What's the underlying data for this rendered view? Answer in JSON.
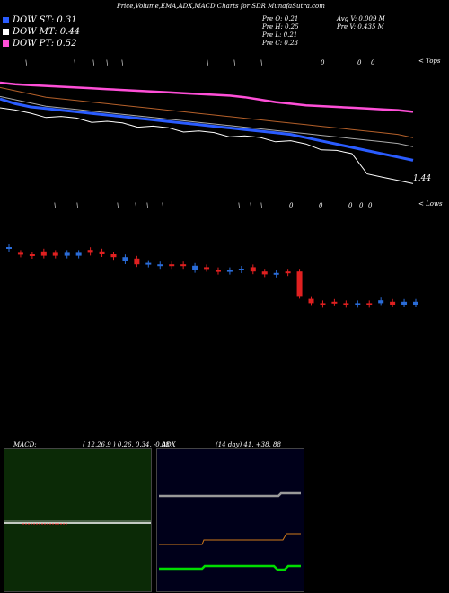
{
  "header": {
    "title": "Price,Volume,EMA,ADX,MACD Charts for SDR MunafaSutra.com"
  },
  "legend": [
    {
      "label": "DOW ST: 0.31",
      "color": "#2a5cff"
    },
    {
      "label": "DOW MT: 0.44",
      "color": "#ffffff"
    },
    {
      "label": "DOW PT: 0.52",
      "color": "#ff4fd8"
    }
  ],
  "stats": {
    "prev_open": "Pre   O: 0.21",
    "prev_high": "Pre   H: 0.25",
    "prev_low": "Pre   L: 0.21",
    "prev_close": "Pre   C: 0.23",
    "avg_volume": "Avg V: 0.009 M",
    "prev_volume": "Pre   V: 0.435 M"
  },
  "labels": {
    "top_right": "< Tops",
    "lows_right": "< Lows",
    "price_tag": "1.44"
  },
  "markers_top": [
    "\\",
    "\\",
    "\\",
    "\\",
    "\\",
    "\\",
    "\\",
    "\\",
    "0",
    "0",
    "0"
  ],
  "markers_low": [
    "\\",
    "\\",
    "\\",
    "\\",
    "\\",
    "\\",
    "\\",
    "\\",
    "\\",
    "0",
    "0",
    "0",
    "0",
    "0"
  ],
  "colors": {
    "bg": "#000000",
    "ema_pink": "#ff4fd8",
    "ema_orange": "#b4602a",
    "ema_gray": "#aaaaaa",
    "ema_blue": "#2a5cff",
    "price_white": "#ffffff",
    "candle_up": "#2a6cd8",
    "candle_down": "#e02020",
    "macd_bg": "#0b2a06",
    "adx_bg": "#00001a",
    "adx_gray": "#999999",
    "adx_orange": "#d07a1a",
    "adx_green": "#00dd00"
  },
  "macd": {
    "title": "MACD:",
    "params": "( 12,26,9 ) 0.26, 0.34, -0.08"
  },
  "adx": {
    "title": "ADX",
    "params": "(14 day) 41, +38, 88"
  },
  "chart_data": {
    "type": "line",
    "title": "Price,Volume,EMA,ADX,MACD Charts for SDR MunafaSutra.com",
    "ema_series": [
      {
        "name": "DOW PT: 0.52",
        "values": [
          1.0,
          0.99,
          0.985,
          0.98,
          0.975,
          0.97,
          0.965,
          0.96,
          0.955,
          0.95,
          0.945,
          0.94,
          0.935,
          0.93,
          0.925,
          0.92,
          0.91,
          0.895,
          0.88,
          0.87,
          0.86,
          0.855,
          0.85,
          0.845,
          0.84,
          0.835,
          0.83,
          0.82
        ]
      },
      {
        "name": "DOW MT: 0.44",
        "values": [
          0.97,
          0.95,
          0.93,
          0.91,
          0.9,
          0.89,
          0.88,
          0.87,
          0.86,
          0.85,
          0.84,
          0.83,
          0.82,
          0.81,
          0.8,
          0.79,
          0.78,
          0.77,
          0.76,
          0.75,
          0.74,
          0.73,
          0.72,
          0.71,
          0.7,
          0.69,
          0.68,
          0.66
        ]
      },
      {
        "name": "DOW ST: 0.31",
        "values": [
          0.9,
          0.87,
          0.85,
          0.84,
          0.83,
          0.82,
          0.81,
          0.8,
          0.79,
          0.78,
          0.77,
          0.76,
          0.75,
          0.74,
          0.73,
          0.72,
          0.71,
          0.7,
          0.69,
          0.68,
          0.66,
          0.64,
          0.62,
          0.6,
          0.58,
          0.56,
          0.54,
          0.52
        ]
      }
    ],
    "candles": [
      {
        "o": 1.44,
        "c": 1.44,
        "up": true
      },
      {
        "o": 1.4,
        "c": 1.4,
        "up": false
      },
      {
        "o": 1.39,
        "c": 1.39,
        "up": false
      },
      {
        "o": 1.41,
        "c": 1.38,
        "up": false
      },
      {
        "o": 1.4,
        "c": 1.38,
        "up": false
      },
      {
        "o": 1.4,
        "c": 1.38,
        "up": true
      },
      {
        "o": 1.38,
        "c": 1.4,
        "up": true
      },
      {
        "o": 1.42,
        "c": 1.4,
        "up": false
      },
      {
        "o": 1.41,
        "c": 1.39,
        "up": false
      },
      {
        "o": 1.39,
        "c": 1.37,
        "up": false
      },
      {
        "o": 1.37,
        "c": 1.34,
        "up": true
      },
      {
        "o": 1.36,
        "c": 1.32,
        "up": false
      },
      {
        "o": 1.33,
        "c": 1.33,
        "up": true
      },
      {
        "o": 1.32,
        "c": 1.32,
        "up": true
      },
      {
        "o": 1.32,
        "c": 1.31,
        "up": false
      },
      {
        "o": 1.32,
        "c": 1.31,
        "up": false
      },
      {
        "o": 1.31,
        "c": 1.28,
        "up": true
      },
      {
        "o": 1.3,
        "c": 1.3,
        "up": false
      },
      {
        "o": 1.28,
        "c": 1.28,
        "up": false
      },
      {
        "o": 1.28,
        "c": 1.28,
        "up": true
      },
      {
        "o": 1.29,
        "c": 1.29,
        "up": true
      },
      {
        "o": 1.3,
        "c": 1.27,
        "up": false
      },
      {
        "o": 1.27,
        "c": 1.25,
        "up": false
      },
      {
        "o": 1.26,
        "c": 1.26,
        "up": true
      },
      {
        "o": 1.27,
        "c": 1.27,
        "up": false
      },
      {
        "o": 1.27,
        "c": 1.1,
        "up": false
      },
      {
        "o": 1.08,
        "c": 1.05,
        "up": false
      },
      {
        "o": 1.05,
        "c": 1.05,
        "up": false
      },
      {
        "o": 1.06,
        "c": 1.06,
        "up": false
      },
      {
        "o": 1.05,
        "c": 1.05,
        "up": false
      },
      {
        "o": 1.05,
        "c": 1.05,
        "up": true
      },
      {
        "o": 1.05,
        "c": 1.05,
        "up": false
      },
      {
        "o": 1.05,
        "c": 1.07,
        "up": true
      },
      {
        "o": 1.06,
        "c": 1.04,
        "up": false
      },
      {
        "o": 1.06,
        "c": 1.04,
        "up": true
      },
      {
        "o": 1.06,
        "c": 1.04,
        "up": true
      }
    ]
  }
}
